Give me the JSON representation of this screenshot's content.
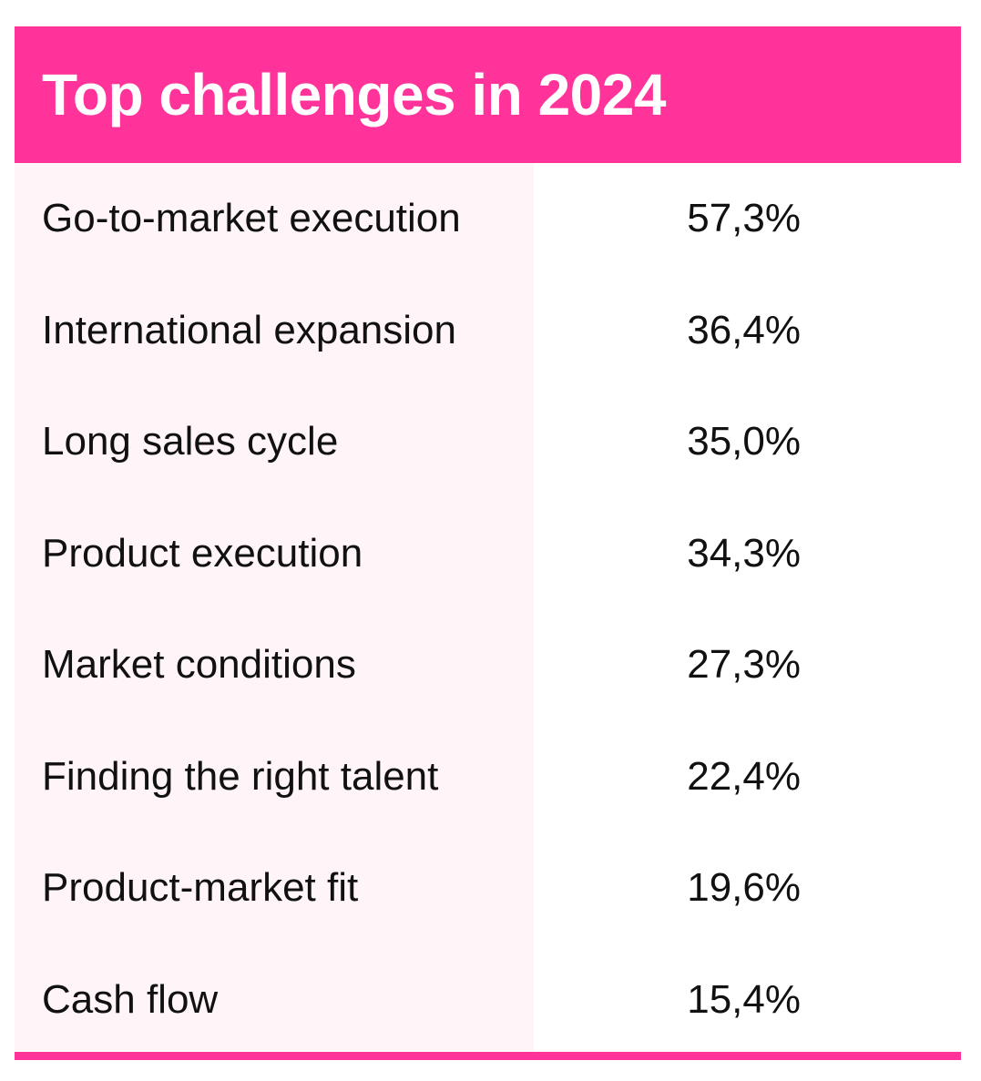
{
  "header": {
    "title": "Top challenges in 2024"
  },
  "colors": {
    "accent": "#ff3399",
    "label_column_bg": "#fff5f9",
    "text": "#111111"
  },
  "chart_data": {
    "type": "table",
    "title": "Top challenges in 2024",
    "rows": [
      {
        "label": "Go-to-market execution",
        "value": "57,3%"
      },
      {
        "label": "International expansion",
        "value": "36,4%"
      },
      {
        "label": "Long sales cycle",
        "value": "35,0%"
      },
      {
        "label": "Product execution",
        "value": "34,3%"
      },
      {
        "label": "Market conditions",
        "value": "27,3%"
      },
      {
        "label": "Finding the right talent",
        "value": "22,4%"
      },
      {
        "label": "Product-market fit",
        "value": "19,6%"
      },
      {
        "label": "Cash flow",
        "value": "15,4%"
      }
    ]
  }
}
